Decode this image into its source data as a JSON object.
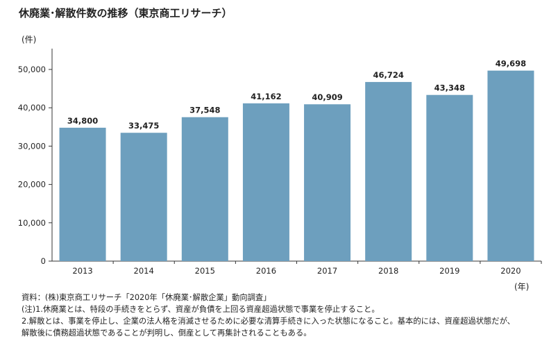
{
  "title": "休廃業･解散件数の推移（東京商工リサーチ）",
  "y_unit": "(件)",
  "x_unit": "(年)",
  "notes": [
    "資料：(株)東京商工リサーチ「2020年「休廃業･解散企業」動向調査」",
    "(注)1.休廃業とは、特段の手続きをとらず、資産が負債を上回る資産超過状態で事業を停止すること。",
    "2.解散とは、事業を停止し、企業の法人格を消滅させるために必要な清算手続きに入った状態になること。基本的には、資産超過状態だが、",
    "解散後に債務超過状態であることが判明し、倒産として再集計されることもある。"
  ],
  "colors": {
    "bar": "#6d9fbe",
    "axis": "#333333"
  },
  "chart_data": {
    "type": "bar",
    "categories": [
      "2013",
      "2014",
      "2015",
      "2016",
      "2017",
      "2018",
      "2019",
      "2020"
    ],
    "values": [
      34800,
      33475,
      37548,
      41162,
      40909,
      46724,
      43348,
      49698
    ],
    "value_labels": [
      "34,800",
      "33,475",
      "37,548",
      "41,162",
      "40,909",
      "46,724",
      "43,348",
      "49,698"
    ],
    "yticks": [
      0,
      10000,
      20000,
      30000,
      40000,
      50000
    ],
    "ytick_labels": [
      "0",
      "10,000",
      "20,000",
      "30,000",
      "40,000",
      "50,000"
    ],
    "ylim": [
      0,
      55000
    ],
    "grid": false,
    "legend": "none"
  }
}
